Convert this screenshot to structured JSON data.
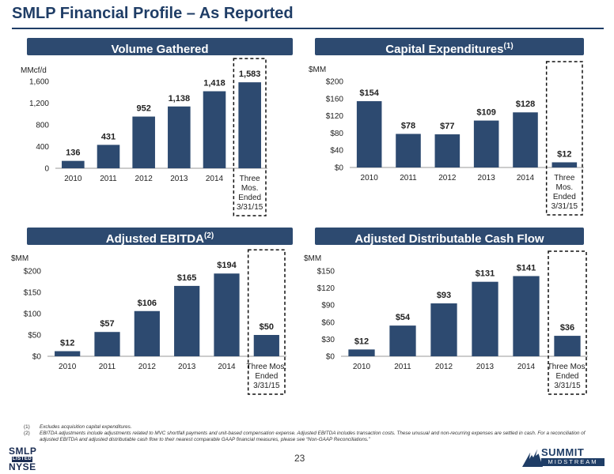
{
  "page": {
    "title": "SMLP Financial Profile – As Reported",
    "page_number": "23"
  },
  "chart_data": [
    {
      "id": "volume",
      "type": "bar",
      "title": "Volume Gathered",
      "title_sup": "",
      "ylabel": "MMcf/d",
      "categories": [
        "2010",
        "2011",
        "2012",
        "2013",
        "2014",
        "Three|Mos.|Ended|3/31/15"
      ],
      "values": [
        136,
        431,
        952,
        1138,
        1418,
        1583
      ],
      "data_labels": [
        "136",
        "431",
        "952",
        "1,138",
        "1,418",
        "1,583"
      ],
      "ylim": [
        0,
        1600
      ],
      "yticks": [
        0,
        400,
        800,
        1200,
        1600
      ],
      "ytick_labels": [
        "0",
        "400",
        "800",
        "1,200",
        "1,600"
      ],
      "highlight_last": true
    },
    {
      "id": "capex",
      "type": "bar",
      "title": "Capital Expenditures",
      "title_sup": "(1)",
      "ylabel": "$MM",
      "categories": [
        "2010",
        "2011",
        "2012",
        "2013",
        "2014",
        "Three|Mos.|Ended|3/31/15"
      ],
      "values": [
        154,
        78,
        77,
        109,
        128,
        12
      ],
      "data_labels": [
        "$154",
        "$78",
        "$77",
        "$109",
        "$128",
        "$12"
      ],
      "ylim": [
        0,
        200
      ],
      "yticks": [
        0,
        40,
        80,
        120,
        160,
        200
      ],
      "ytick_labels": [
        "$0",
        "$40",
        "$80",
        "$120",
        "$160",
        "$200"
      ],
      "highlight_last": true
    },
    {
      "id": "ebitda",
      "type": "bar",
      "title": "Adjusted EBITDA",
      "title_sup": "(2)",
      "ylabel": "$MM",
      "categories": [
        "2010",
        "2011",
        "2012",
        "2013",
        "2014",
        "Three Mos.|Ended|3/31/15"
      ],
      "values": [
        12,
        57,
        106,
        165,
        194,
        50
      ],
      "data_labels": [
        "$12",
        "$57",
        "$106",
        "$165",
        "$194",
        "$50"
      ],
      "ylim": [
        0,
        200
      ],
      "yticks": [
        0,
        50,
        100,
        150,
        200
      ],
      "ytick_labels": [
        "$0",
        "$50",
        "$100",
        "$150",
        "$200"
      ],
      "highlight_last": true
    },
    {
      "id": "dcf",
      "type": "bar",
      "title": "Adjusted Distributable Cash Flow",
      "title_sup": "",
      "ylabel": "$MM",
      "categories": [
        "2010",
        "2011",
        "2012",
        "2013",
        "2014",
        "Three Mos.|Ended|3/31/15"
      ],
      "values": [
        12,
        54,
        93,
        131,
        141,
        36
      ],
      "data_labels": [
        "$12",
        "$54",
        "$93",
        "$131",
        "$141",
        "$36"
      ],
      "ylim": [
        0,
        150
      ],
      "yticks": [
        0,
        30,
        60,
        90,
        120,
        150
      ],
      "ytick_labels": [
        "$0",
        "$30",
        "$60",
        "$90",
        "$120",
        "$150"
      ],
      "highlight_last": true
    }
  ],
  "footnotes": [
    {
      "num": "(1)",
      "text": "Excludes acquisition capital expenditures."
    },
    {
      "num": "(2)",
      "text": "EBITDA adjustments include adjustments related to MVC shortfall payments and unit-based compensation expense. Adjusted EBITDA includes transaction costs. These unusual and non-recurring expenses are settled in cash. For a reconciliation of adjusted EBITDA and adjusted distributable cash flow to their nearest comparable GAAP financial measures, please see “Non-GAAP Reconciliations.”"
    }
  ],
  "logos": {
    "smlp_line1": "SMLP",
    "smlp_line2": "LISTED",
    "smlp_line3": "NYSE",
    "brand_name": "SUMMIT",
    "brand_sub": "MIDSTREAM"
  },
  "colors": {
    "bar": "#2d4a70",
    "header_bg": "#2d4a70",
    "title": "#1f3d66"
  }
}
